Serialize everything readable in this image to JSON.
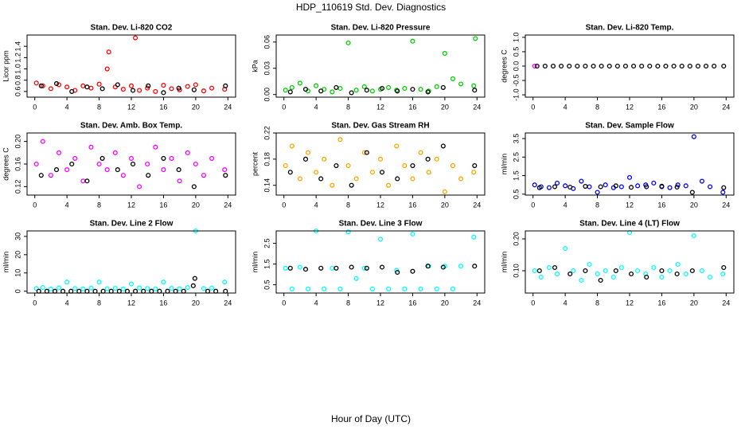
{
  "title": "HDP_110619  Std. Dev. Diagnostics",
  "x_label": "Hour of Day (UTC)",
  "chart_data": [
    {
      "type": "scatter",
      "title": "Stan. Dev. Li-820 CO2",
      "y_label": "Licor ppm",
      "xlim": [
        -0.96,
        24.96
      ],
      "xticks": [
        0,
        4,
        8,
        12,
        16,
        20,
        24
      ],
      "ylim": [
        0.5,
        1.6
      ],
      "yticks": [
        0.6,
        0.8,
        {
          "value": 1.0,
          "label": "1.0"
        },
        1.2,
        1.4
      ],
      "series": [
        {
          "color": "#ff0000",
          "x": [
            0.2,
            1,
            2,
            3,
            4,
            5,
            6,
            7,
            8,
            9,
            9.2,
            10,
            11,
            12,
            12.5,
            13,
            14,
            15,
            16,
            17,
            18,
            19,
            20,
            21,
            22,
            23.6
          ],
          "values": [
            0.75,
            0.7,
            0.65,
            0.72,
            0.68,
            0.62,
            0.7,
            0.66,
            0.73,
            1.0,
            1.3,
            0.68,
            0.64,
            0.7,
            1.55,
            0.62,
            0.66,
            0.6,
            0.71,
            0.65,
            0.63,
            0.69,
            0.72,
            0.61,
            0.66,
            0.64
          ]
        },
        {
          "color": "#000000",
          "x": [
            0.8,
            2.7,
            4.6,
            6.5,
            8.4,
            10.3,
            12.2,
            14.1,
            16,
            17.9,
            19.8,
            23.7
          ],
          "values": [
            0.7,
            0.74,
            0.6,
            0.68,
            0.65,
            0.72,
            0.62,
            0.7,
            0.58,
            0.66,
            0.63,
            0.7
          ]
        }
      ]
    },
    {
      "type": "scatter",
      "title": "Stan. Dev. Li-820 Pressure",
      "y_label": "kPa",
      "xlim": [
        -0.96,
        24.96
      ],
      "xticks": [
        0,
        4,
        8,
        12,
        16,
        20,
        24
      ],
      "ylim": [
        -0.003,
        0.068
      ],
      "yticks": [
        {
          "value": 0,
          "label": "0.00"
        },
        0.03,
        0.06
      ],
      "series": [
        {
          "color": "#00d000",
          "x": [
            0.2,
            1,
            2,
            3,
            4,
            5,
            6,
            7,
            8,
            9,
            10,
            11,
            12,
            13,
            14,
            15,
            16,
            17,
            18,
            19,
            20,
            21,
            22,
            23.6,
            23.8
          ],
          "values": [
            0.005,
            0.008,
            0.013,
            0.004,
            0.01,
            0.006,
            0.003,
            0.007,
            0.059,
            0.005,
            0.009,
            0.004,
            0.006,
            0.008,
            0.005,
            0.007,
            0.061,
            0.006,
            0.004,
            0.009,
            0.047,
            0.018,
            0.012,
            0.01,
            0.064
          ]
        },
        {
          "color": "#000000",
          "x": [
            0.8,
            2.7,
            4.6,
            6.5,
            8.4,
            10.3,
            12.2,
            14.1,
            16,
            17.9,
            19.8,
            23.7
          ],
          "values": [
            0.003,
            0.006,
            0.004,
            0.008,
            0.002,
            0.005,
            0.007,
            0.004,
            0.006,
            0.003,
            0.008,
            0.005
          ]
        }
      ]
    },
    {
      "type": "scatter",
      "title": "Stan. Dev. Li-820 Temp.",
      "y_label": "degrees C",
      "xlim": [
        -0.96,
        24.96
      ],
      "xticks": [
        0,
        4,
        8,
        12,
        16,
        20,
        24
      ],
      "ylim": [
        -1.08,
        1.08
      ],
      "yticks": [
        {
          "value": -1.0,
          "label": "-1.0"
        },
        -0.5,
        {
          "value": 0,
          "label": "0.0"
        },
        0.5,
        {
          "value": 1.0,
          "label": "1.0"
        }
      ],
      "series": [
        {
          "color": "#ff00ff",
          "x": [
            0.2
          ],
          "values": [
            0
          ]
        },
        {
          "color": "#000000",
          "x": [
            0.5,
            1.5,
            2.5,
            3.5,
            4.5,
            5.5,
            6.5,
            7.5,
            8.5,
            9.5,
            10.5,
            11.5,
            12.5,
            13.5,
            14.5,
            15.5,
            16.5,
            17.5,
            18.5,
            19.5,
            20.5,
            21.5,
            22.5,
            23.7
          ],
          "values": [
            0,
            0,
            0,
            0,
            0,
            0,
            0,
            0,
            0,
            0,
            0,
            0,
            0,
            0,
            0,
            0,
            0,
            0,
            0,
            0,
            0,
            0,
            0,
            0
          ]
        }
      ]
    },
    {
      "type": "scatter",
      "title": "Stan. Dev. Amb. Box Temp.",
      "y_label": "degrees C",
      "xlim": [
        -0.96,
        24.96
      ],
      "xticks": [
        0,
        4,
        8,
        12,
        16,
        20,
        24
      ],
      "ylim": [
        0.105,
        0.215
      ],
      "yticks": [
        0.12,
        0.16,
        {
          "value": 0.2,
          "label": "0.20"
        }
      ],
      "series": [
        {
          "color": "#ff00ff",
          "x": [
            0.2,
            1,
            2,
            3,
            4,
            5,
            6,
            7,
            8,
            9,
            10,
            11,
            12,
            13,
            14,
            15,
            16,
            17,
            18,
            19,
            20,
            21,
            22,
            23.6
          ],
          "values": [
            0.16,
            0.2,
            0.14,
            0.18,
            0.15,
            0.17,
            0.13,
            0.19,
            0.16,
            0.15,
            0.18,
            0.14,
            0.17,
            0.12,
            0.16,
            0.19,
            0.15,
            0.17,
            0.13,
            0.18,
            0.16,
            0.14,
            0.17,
            0.15
          ]
        },
        {
          "color": "#000000",
          "x": [
            0.8,
            2.7,
            4.6,
            6.5,
            8.4,
            10.3,
            12.2,
            14.1,
            16,
            17.9,
            19.8,
            23.7
          ],
          "values": [
            0.14,
            0.15,
            0.16,
            0.13,
            0.17,
            0.15,
            0.16,
            0.14,
            0.17,
            0.15,
            0.12,
            0.14
          ]
        }
      ]
    },
    {
      "type": "scatter",
      "title": "Stan. Dev. Gas Stream RH",
      "y_label": "percent",
      "xlim": [
        -0.96,
        24.96
      ],
      "xticks": [
        0,
        4,
        8,
        12,
        16,
        20,
        24
      ],
      "ylim": [
        0.125,
        0.22
      ],
      "yticks": [
        0.14,
        0.18,
        0.22
      ],
      "series": [
        {
          "color": "#ffa500",
          "x": [
            0.2,
            1,
            2,
            3,
            4,
            5,
            6,
            7,
            8,
            9,
            10,
            11,
            12,
            13,
            14,
            15,
            16,
            17,
            18,
            19,
            20,
            21,
            22,
            23.6
          ],
          "values": [
            0.17,
            0.2,
            0.15,
            0.19,
            0.16,
            0.18,
            0.14,
            0.21,
            0.17,
            0.15,
            0.19,
            0.16,
            0.18,
            0.14,
            0.2,
            0.17,
            0.15,
            0.19,
            0.16,
            0.18,
            0.13,
            0.17,
            0.15,
            0.16
          ]
        },
        {
          "color": "#000000",
          "x": [
            0.8,
            2.7,
            4.6,
            6.5,
            8.4,
            10.3,
            12.2,
            14.1,
            16,
            17.9,
            19.8,
            23.7
          ],
          "values": [
            0.16,
            0.18,
            0.15,
            0.17,
            0.14,
            0.19,
            0.16,
            0.15,
            0.17,
            0.18,
            0.2,
            0.17
          ]
        }
      ]
    },
    {
      "type": "scatter",
      "title": "Stan. Dev. Sample Flow",
      "y_label": "ml/min",
      "xlim": [
        -0.96,
        24.96
      ],
      "xticks": [
        0,
        4,
        8,
        12,
        16,
        20,
        24
      ],
      "ylim": [
        0.45,
        3.8
      ],
      "yticks": [
        0.5,
        1.5,
        2.5,
        3.5
      ],
      "series": [
        {
          "color": "#0000ff",
          "x": [
            0.2,
            1,
            2,
            3,
            4,
            5,
            6,
            7,
            8,
            9,
            10,
            11,
            12,
            13,
            14,
            15,
            16,
            17,
            18,
            19,
            20,
            21,
            22,
            23.6
          ],
          "values": [
            1.0,
            0.9,
            0.85,
            1.1,
            0.95,
            0.8,
            1.2,
            0.9,
            0.6,
            1.0,
            0.85,
            0.9,
            1.4,
            0.95,
            1.0,
            1.1,
            0.9,
            0.85,
            1.0,
            0.95,
            3.6,
            1.2,
            0.9,
            0.6
          ]
        },
        {
          "color": "#000000",
          "x": [
            0.8,
            2.7,
            4.6,
            6.5,
            8.4,
            10.3,
            12.2,
            14.1,
            16,
            17.9,
            19.8,
            23.7
          ],
          "values": [
            0.85,
            0.9,
            0.88,
            0.92,
            0.9,
            0.95,
            0.87,
            0.9,
            0.93,
            0.88,
            0.6,
            0.85
          ]
        }
      ]
    },
    {
      "type": "scatter",
      "title": "Stan. Dev. Line 2 Flow",
      "y_label": "ml/min",
      "xlim": [
        -0.96,
        24.96
      ],
      "xticks": [
        0,
        4,
        8,
        12,
        16,
        20,
        24
      ],
      "ylim": [
        -1,
        33
      ],
      "yticks": [
        0,
        10,
        20,
        30
      ],
      "series": [
        {
          "color": "#00ffff",
          "x": [
            0.2,
            1,
            2,
            3,
            4,
            5,
            6,
            7,
            8,
            9,
            10,
            11,
            12,
            13,
            14,
            15,
            16,
            17,
            18,
            19,
            20,
            21,
            22,
            23.6
          ],
          "values": [
            1.5,
            2,
            1.2,
            1.8,
            5,
            1.5,
            1.3,
            1.7,
            5,
            1.4,
            1.6,
            1.2,
            4,
            1.8,
            1.5,
            1.3,
            5,
            1.6,
            1.4,
            2,
            33,
            1.5,
            1.7,
            5
          ]
        },
        {
          "color": "#000000",
          "x": [
            0.5,
            1.5,
            2.5,
            3.5,
            4.5,
            5.5,
            6.5,
            7.5,
            8.5,
            9.5,
            10.5,
            11.5,
            12.5,
            13.5,
            14.5,
            15.5,
            16.5,
            17.5,
            18.5,
            19.7,
            19.9,
            21.5,
            22.5,
            23.7
          ],
          "values": [
            0,
            0,
            0,
            0,
            0,
            0,
            0,
            0,
            0,
            0,
            0,
            0,
            0,
            0,
            0,
            0,
            0,
            0,
            0,
            3,
            7,
            0,
            0,
            0
          ]
        }
      ]
    },
    {
      "type": "scatter",
      "title": "Stan. Dev. Line 3 Flow",
      "y_label": "ml/min",
      "xlim": [
        -0.96,
        24.96
      ],
      "xticks": [
        0,
        4,
        8,
        12,
        16,
        20,
        24
      ],
      "ylim": [
        0.1,
        3.1
      ],
      "yticks": [
        0.5,
        1.5,
        2.5
      ],
      "series": [
        {
          "color": "#00ffff",
          "x": [
            0.2,
            1,
            2,
            3,
            4,
            5,
            6,
            7,
            8,
            9,
            10,
            11,
            12,
            13,
            14,
            15,
            16,
            17,
            18,
            19,
            20,
            21,
            22,
            23.6
          ],
          "values": [
            1.3,
            0.3,
            1.35,
            0.3,
            3.1,
            0.3,
            1.3,
            0.3,
            3.05,
            0.8,
            1.3,
            0.3,
            2.7,
            0.3,
            1.2,
            0.3,
            2.95,
            0.3,
            1.4,
            0.3,
            1.4,
            0.3,
            1.4,
            2.8
          ]
        },
        {
          "color": "#000000",
          "x": [
            0.8,
            2.7,
            4.6,
            6.5,
            8.4,
            10.3,
            12.2,
            14.1,
            16,
            17.9,
            19.8,
            23.7
          ],
          "values": [
            1.3,
            1.25,
            1.3,
            1.3,
            1.35,
            1.3,
            1.35,
            1.1,
            1.15,
            1.4,
            1.35,
            1.4
          ]
        }
      ]
    },
    {
      "type": "scatter",
      "title": "Stan. Dev. Line 4 (LT) Flow",
      "y_label": "ml/min",
      "xlim": [
        -0.96,
        24.96
      ],
      "xticks": [
        0,
        4,
        8,
        12,
        16,
        20,
        24
      ],
      "ylim": [
        0.03,
        0.225
      ],
      "yticks": [
        {
          "value": 0.1,
          "label": "0.10"
        },
        {
          "value": 0.2,
          "label": "0.20"
        }
      ],
      "series": [
        {
          "color": "#00ffff",
          "x": [
            0.2,
            1,
            2,
            3,
            4,
            5,
            6,
            7,
            8,
            9,
            10,
            11,
            12,
            13,
            14,
            15,
            16,
            17,
            18,
            19,
            20,
            21,
            22,
            23.6
          ],
          "values": [
            0.1,
            0.08,
            0.11,
            0.09,
            0.17,
            0.1,
            0.07,
            0.12,
            0.09,
            0.1,
            0.08,
            0.11,
            0.22,
            0.1,
            0.09,
            0.11,
            0.08,
            0.1,
            0.12,
            0.09,
            0.21,
            0.1,
            0.08,
            0.09
          ]
        },
        {
          "color": "#000000",
          "x": [
            0.8,
            2.7,
            4.6,
            6.5,
            8.4,
            10.3,
            12.2,
            14.1,
            16,
            17.9,
            19.8,
            23.7
          ],
          "values": [
            0.1,
            0.11,
            0.09,
            0.1,
            0.07,
            0.1,
            0.09,
            0.08,
            0.1,
            0.09,
            0.1,
            0.11
          ]
        }
      ]
    }
  ]
}
